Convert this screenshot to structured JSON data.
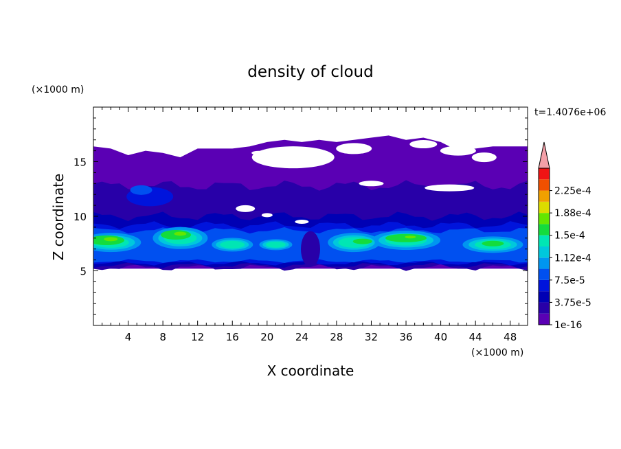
{
  "chart_data": {
    "type": "heatmap",
    "title": "density of cloud",
    "xlabel": "X coordinate",
    "ylabel": "Z coordinate",
    "x_unit": "(×1000 m)",
    "y_unit": "(×1000 m)",
    "time_label": "t=1.4076e+06",
    "xlim": [
      0,
      50
    ],
    "ylim": [
      0,
      20
    ],
    "x_ticks": [
      4,
      8,
      12,
      16,
      20,
      24,
      28,
      32,
      36,
      40,
      44,
      48
    ],
    "y_ticks": [
      5,
      10,
      15
    ],
    "colorbar": {
      "labels": [
        "1e-16",
        "3.75e-5",
        "7.5e-5",
        "1.12e-4",
        "1.5e-4",
        "1.88e-4",
        "2.25e-4"
      ],
      "levels": [
        1e-16,
        1.875e-05,
        3.75e-05,
        5.625e-05,
        7.5e-05,
        9.375e-05,
        0.0001125,
        0.00013125,
        0.00015,
        0.00016875,
        0.0001875,
        0.00020625,
        0.000225,
        0.00024375
      ],
      "colors": [
        "#5a00b4",
        "#2800a8",
        "#0000b4",
        "#0014dc",
        "#0050f0",
        "#0096f0",
        "#00c8dc",
        "#00e6b4",
        "#14dc3c",
        "#64e600",
        "#dcdc00",
        "#f0a000",
        "#f05000",
        "#f01414"
      ],
      "extend_color": "#f4a0a8"
    },
    "cloud_layers": [
      {
        "level": 1e-16,
        "z_bottom": 5.2,
        "z_top_profile": [
          [
            0,
            16.4
          ],
          [
            2,
            16.2
          ],
          [
            4,
            15.6
          ],
          [
            6,
            16.0
          ],
          [
            8,
            15.8
          ],
          [
            10,
            15.4
          ],
          [
            12,
            16.2
          ],
          [
            14,
            16.2
          ],
          [
            16,
            16.2
          ],
          [
            18,
            16.4
          ],
          [
            20,
            16.8
          ],
          [
            22,
            17.0
          ],
          [
            24,
            16.8
          ],
          [
            26,
            17.0
          ],
          [
            28,
            16.8
          ],
          [
            30,
            17.0
          ],
          [
            32,
            17.2
          ],
          [
            34,
            17.4
          ],
          [
            36,
            17.0
          ],
          [
            38,
            17.2
          ],
          [
            40,
            16.8
          ],
          [
            42,
            16.0
          ],
          [
            44,
            16.2
          ],
          [
            46,
            16.4
          ],
          [
            48,
            16.4
          ],
          [
            50,
            16.4
          ]
        ]
      },
      {
        "level": 3.75e-05,
        "x_range": [
          0,
          50
        ],
        "z_range": [
          5.6,
          9.8
        ]
      },
      {
        "level": 0.0001125,
        "centers": [
          [
            2,
            7.6
          ],
          [
            10,
            8.0
          ],
          [
            16,
            7.4
          ],
          [
            30,
            7.6
          ],
          [
            36,
            7.8
          ],
          [
            46,
            7.4
          ]
        ]
      },
      {
        "level": 0.00015,
        "centers": [
          [
            1.5,
            7.8
          ],
          [
            9.5,
            8.2
          ],
          [
            36,
            8.0
          ]
        ]
      }
    ]
  }
}
